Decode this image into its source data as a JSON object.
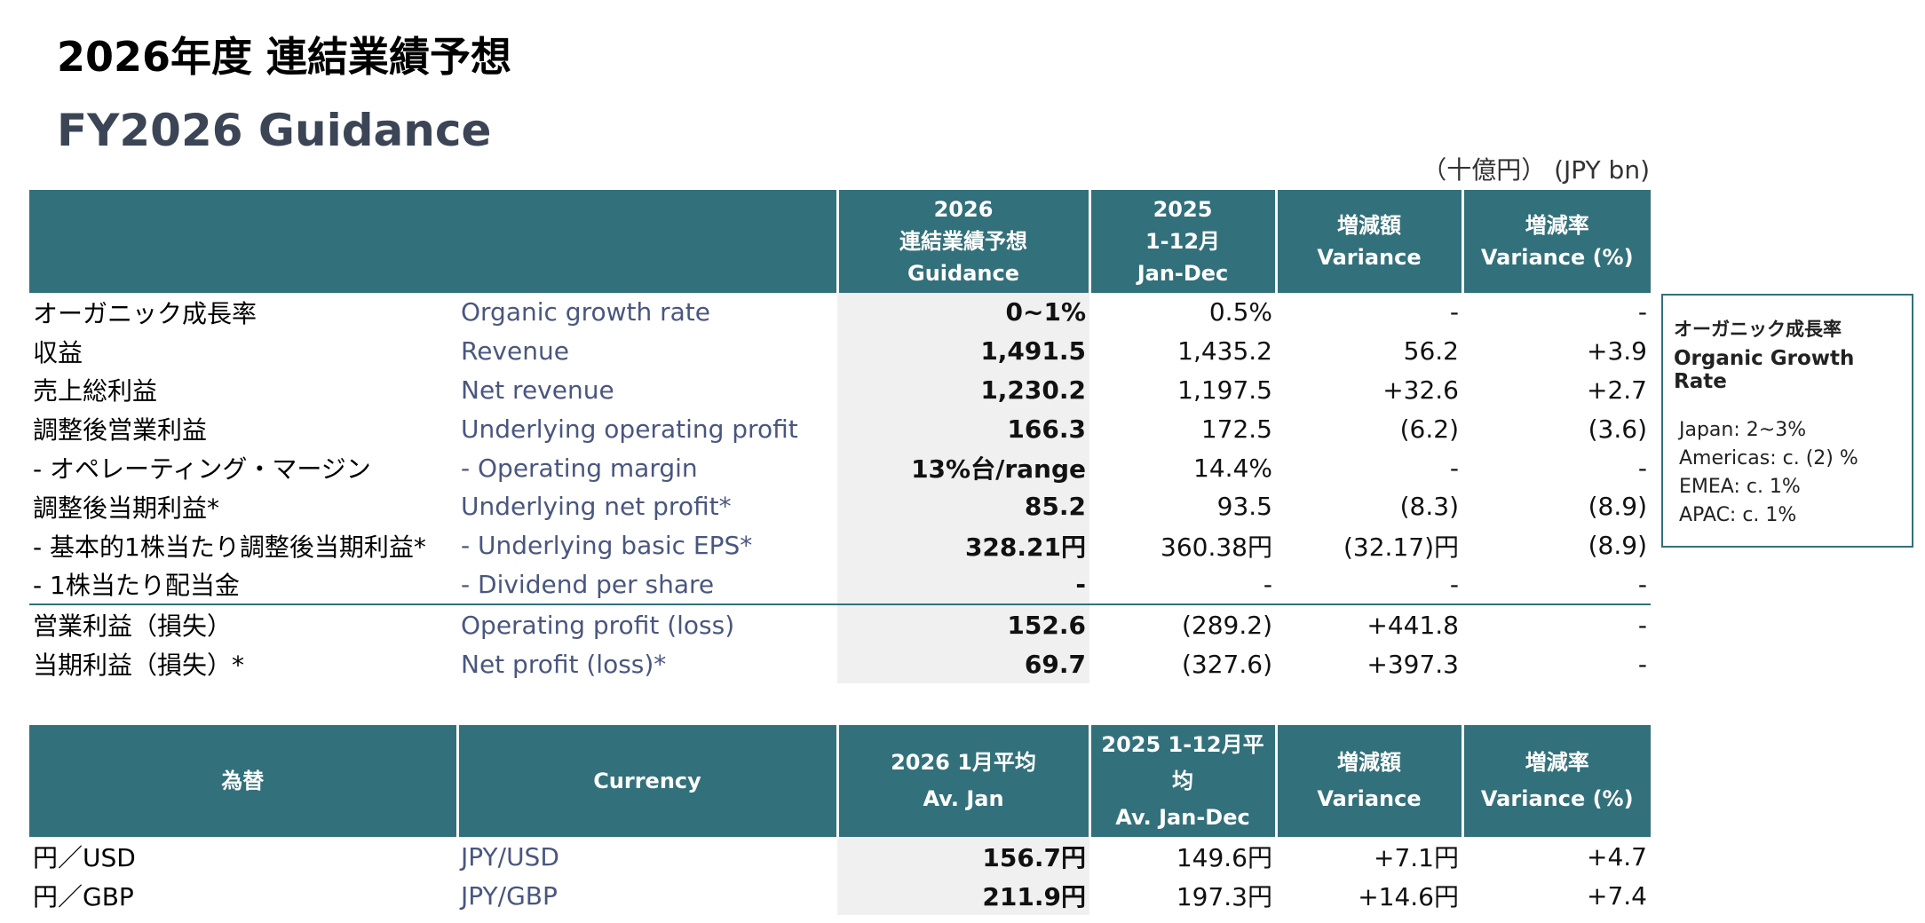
{
  "header": {
    "title_jp": "2026年度 連結業績予想",
    "title_en": "FY2026 Guidance",
    "unit": "（十億円） (JPY bn)"
  },
  "main_table": {
    "columns": {
      "guidance": [
        "2026",
        "連結業績予想",
        "Guidance"
      ],
      "actual": [
        "2025",
        "1-12月",
        "Jan-Dec"
      ],
      "variance": [
        "増減額",
        "Variance"
      ],
      "variance_pct": [
        "増減率",
        "Variance (%)"
      ]
    },
    "rows": [
      {
        "jp": "オーガニック成長率",
        "en": "Organic growth rate",
        "guidance": "0~1%",
        "actual": "0.5%",
        "variance": "-",
        "variance_pct": "-"
      },
      {
        "jp": "収益",
        "en": "Revenue",
        "guidance": "1,491.5",
        "actual": "1,435.2",
        "variance": "56.2",
        "variance_pct": "+3.9"
      },
      {
        "jp": "売上総利益",
        "en": "Net revenue",
        "guidance": "1,230.2",
        "actual": "1,197.5",
        "variance": "+32.6",
        "variance_pct": "+2.7"
      },
      {
        "jp": "調整後営業利益",
        "en": "Underlying operating profit",
        "guidance": "166.3",
        "actual": "172.5",
        "variance": "(6.2)",
        "variance_pct": "(3.6)"
      },
      {
        "jp": "- オペレーティング・マージン",
        "en": "- Operating margin",
        "guidance": "13%台/range",
        "actual": "14.4%",
        "variance": "-",
        "variance_pct": "-"
      },
      {
        "jp": "調整後当期利益*",
        "en": "Underlying net profit*",
        "guidance": "85.2",
        "actual": "93.5",
        "variance": "(8.3)",
        "variance_pct": "(8.9)"
      },
      {
        "jp": "- 基本的1株当たり調整後当期利益*",
        "en": "- Underlying basic EPS*",
        "guidance": "328.21円",
        "actual": "360.38円",
        "variance": "(32.17)円",
        "variance_pct": "(8.9)"
      },
      {
        "jp": "- 1株当たり配当金",
        "en": "- Dividend per share",
        "guidance": "-",
        "actual": "-",
        "variance": "-",
        "variance_pct": "-"
      },
      {
        "jp": "営業利益（損失）",
        "en": "Operating profit (loss)",
        "guidance": "152.6",
        "actual": "(289.2)",
        "variance": "+441.8",
        "variance_pct": "-"
      },
      {
        "jp": "当期利益（損失）*",
        "en": "Net profit (loss)*",
        "guidance": "69.7",
        "actual": "(327.6)",
        "variance": "+397.3",
        "variance_pct": "-"
      }
    ]
  },
  "fx_table": {
    "columns": {
      "jp": "為替",
      "en": "Currency",
      "jan": [
        "2026 1月平均",
        "Av. Jan"
      ],
      "year": [
        "2025 1-12月平均",
        "Av. Jan-Dec"
      ],
      "variance": [
        "増減額",
        "Variance"
      ],
      "variance_pct": [
        "増減率",
        "Variance (%)"
      ]
    },
    "rows": [
      {
        "jp": "円／USD",
        "en": "JPY/USD",
        "jan": "156.7円",
        "year": "149.6円",
        "variance": "+7.1円",
        "variance_pct": "+4.7"
      },
      {
        "jp": "円／GBP",
        "en": "JPY/GBP",
        "jan": "211.9円",
        "year": "197.3円",
        "variance": "+14.6円",
        "variance_pct": "+7.4"
      }
    ]
  },
  "sidebar": {
    "title_jp": "オーガニック成長率",
    "title_en": "Organic Growth Rate",
    "items": [
      "Japan: 2~3%",
      "Americas: c. (2) %",
      "EMEA: c. 1%",
      "APAC: c. 1%"
    ]
  }
}
